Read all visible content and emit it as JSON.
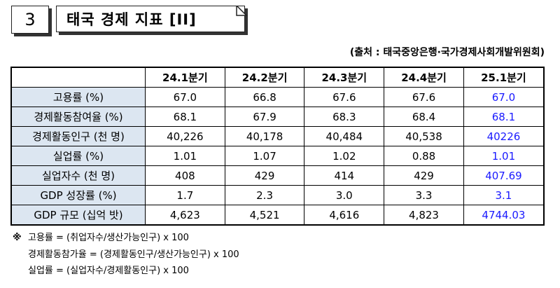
{
  "header": {
    "number": "3",
    "title": "태국 경제 지표 [II]"
  },
  "source": "(출처 : 태국중앙은행·국가경제사회개발위원회)",
  "table": {
    "columns": [
      "24.1분기",
      "24.2분기",
      "24.3분기",
      "24.4분기",
      "25.1분기"
    ],
    "rows": [
      [
        "고용률 (%)",
        "67.0",
        "66.8",
        "67.6",
        "67.6",
        "67.0"
      ],
      [
        "경제활동참여율 (%)",
        "68.1",
        "67.9",
        "68.3",
        "68.4",
        "68.1"
      ],
      [
        "경제활동인구 (천 명)",
        "40,226",
        "40,178",
        "40,484",
        "40,538",
        "40226"
      ],
      [
        "실업률 (%)",
        "1.01",
        "1.07",
        "1.02",
        "0.88",
        "1.01"
      ],
      [
        "실업자수 (천 명)",
        "408",
        "429",
        "414",
        "429",
        "407.69"
      ],
      [
        "GDP 성장률 (%)",
        "1.7",
        "2.3",
        "3.0",
        "3.3",
        "3.1"
      ],
      [
        "GDP 규모 (십억 밧)",
        "4,623",
        "4,521",
        "4,616",
        "4,823",
        "4744.03"
      ]
    ]
  },
  "notes": {
    "marker": "※",
    "lines": [
      "고용률 = (취업자수/생산가능인구) x 100",
      "경제활동참가율 = (경제활동인구/생산가능인구) x 100",
      "실업률 = (실업자수/경제활동인구) x 100"
    ]
  }
}
